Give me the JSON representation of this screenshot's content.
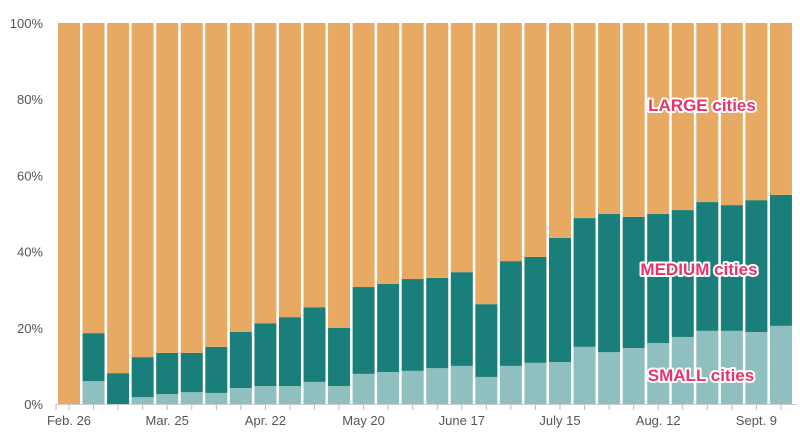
{
  "chart_data": {
    "type": "bar",
    "stacked": "percent",
    "title": "",
    "xlabel": "",
    "ylabel": "",
    "ylim": [
      0,
      100
    ],
    "y_ticks": [
      "0%",
      "20%",
      "40%",
      "60%",
      "80%",
      "100%"
    ],
    "y_tick_values": [
      0,
      20,
      40,
      60,
      80,
      100
    ],
    "categories": [
      "Feb. 26",
      "Mar. 4",
      "Mar. 11",
      "Mar. 18",
      "Mar. 25",
      "Apr. 1",
      "Apr. 8",
      "Apr. 15",
      "Apr. 22",
      "Apr. 29",
      "May 6",
      "May 13",
      "May 20",
      "May 27",
      "June 3",
      "June 10",
      "June 17",
      "June 24",
      "July 1",
      "July 8",
      "July 15",
      "July 22",
      "July 29",
      "Aug. 5",
      "Aug. 12",
      "Aug. 19",
      "Aug. 26",
      "Sept. 2",
      "Sept. 9",
      "Sept. 16"
    ],
    "x_tick_labels": [
      {
        "index": 0,
        "label": "Feb. 26"
      },
      {
        "index": 4,
        "label": "Mar. 25"
      },
      {
        "index": 8,
        "label": "Apr. 22"
      },
      {
        "index": 12,
        "label": "May 20"
      },
      {
        "index": 16,
        "label": "June 17"
      },
      {
        "index": 20,
        "label": "July 15"
      },
      {
        "index": 24,
        "label": "Aug. 12"
      },
      {
        "index": 28,
        "label": "Sept. 9"
      }
    ],
    "series": [
      {
        "name": "SMALL cities",
        "color": "#8fbfbe",
        "values": [
          0,
          6.0,
          0,
          1.8,
          2.6,
          3.1,
          2.9,
          4.2,
          4.7,
          4.7,
          5.8,
          4.7,
          7.9,
          8.4,
          8.7,
          9.4,
          10.0,
          7.1,
          10.0,
          10.8,
          11.0,
          15.0,
          13.6,
          14.7,
          16.0,
          17.6,
          19.2,
          19.2,
          18.9,
          20.5
        ]
      },
      {
        "name": "MEDIUM cities",
        "color": "#1a7f7b",
        "values": [
          0,
          12.6,
          8.1,
          10.5,
          10.8,
          10.3,
          12.1,
          14.7,
          16.5,
          18.1,
          19.6,
          15.3,
          22.8,
          23.1,
          24.1,
          23.7,
          24.6,
          19.1,
          27.5,
          27.8,
          32.6,
          33.8,
          36.3,
          34.4,
          33.9,
          33.3,
          33.8,
          33.0,
          34.6,
          34.4
        ]
      },
      {
        "name": "LARGE cities",
        "color": "#e8a962",
        "values": [
          100,
          81.4,
          91.9,
          87.7,
          86.6,
          86.6,
          85.0,
          81.1,
          78.8,
          77.2,
          74.6,
          80.0,
          69.3,
          68.5,
          67.2,
          66.9,
          65.4,
          73.8,
          62.5,
          61.4,
          56.4,
          51.2,
          50.1,
          50.9,
          50.1,
          49.1,
          47.0,
          47.8,
          46.5,
          45.1
        ]
      }
    ],
    "annotations": {
      "large": "LARGE cities",
      "medium": "MEDIUM cities",
      "small": "SMALL cities"
    }
  }
}
